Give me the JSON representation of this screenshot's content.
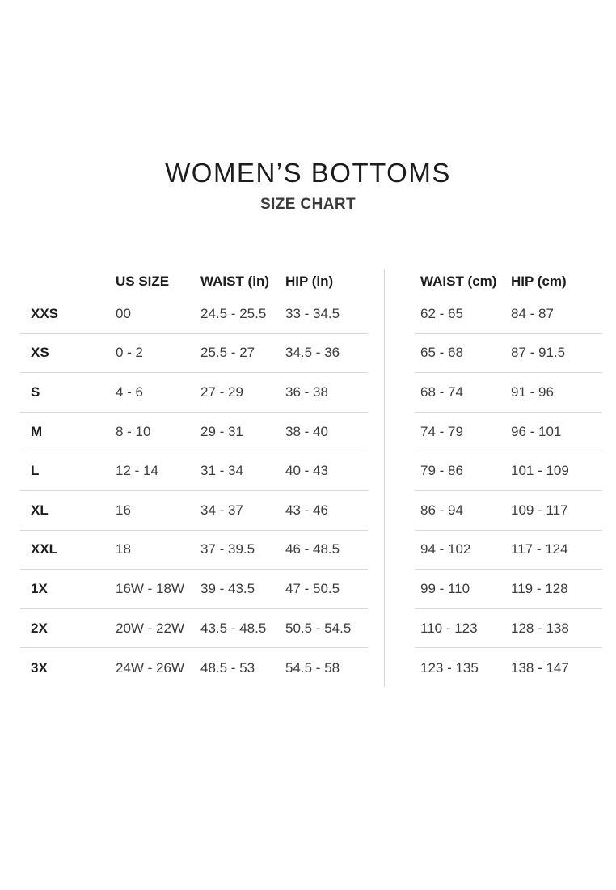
{
  "title": "WOMEN’S BOTTOMS",
  "subtitle": "SIZE CHART",
  "colors": {
    "background": "#ffffff",
    "heading_text": "#1c1c1c",
    "header_text": "#1d1d1d",
    "value_text": "#3c3c3c",
    "divider": "#d9d9d9"
  },
  "chart_data": {
    "type": "table",
    "title": "WOMEN’S BOTTOMS",
    "subtitle": "SIZE CHART",
    "tables": [
      {
        "name": "us-inches-table",
        "columns": [
          "",
          "US SIZE",
          "WAIST (in)",
          "HIP (in)"
        ],
        "rows": [
          [
            "XXS",
            "00",
            "24.5 - 25.5",
            "33 - 34.5"
          ],
          [
            "XS",
            "0 - 2",
            "25.5 - 27",
            "34.5 - 36"
          ],
          [
            "S",
            "4 - 6",
            "27 - 29",
            "36 - 38"
          ],
          [
            "M",
            "8 - 10",
            "29 - 31",
            "38 - 40"
          ],
          [
            "L",
            "12 - 14",
            "31 - 34",
            "40 - 43"
          ],
          [
            "XL",
            "16",
            "34 - 37",
            "43 - 46"
          ],
          [
            "XXL",
            "18",
            "37 - 39.5",
            "46 - 48.5"
          ],
          [
            "1X",
            "16W - 18W",
            "39 - 43.5",
            "47 - 50.5"
          ],
          [
            "2X",
            "20W - 22W",
            "43.5 - 48.5",
            "50.5 - 54.5"
          ],
          [
            "3X",
            "24W - 26W",
            "48.5 - 53",
            "54.5 - 58"
          ]
        ]
      },
      {
        "name": "metric-cm-table",
        "columns": [
          "WAIST (cm)",
          "HIP (cm)"
        ],
        "rows": [
          [
            "62 - 65",
            "84 - 87"
          ],
          [
            "65 - 68",
            "87 - 91.5"
          ],
          [
            "68 - 74",
            "91 - 96"
          ],
          [
            "74 - 79",
            "96 - 101"
          ],
          [
            "79 - 86",
            "101 - 109"
          ],
          [
            "86 - 94",
            "109 - 117"
          ],
          [
            "94 - 102",
            "117 - 124"
          ],
          [
            "99 - 110",
            "119 - 128"
          ],
          [
            "110 - 123",
            "128 - 138"
          ],
          [
            "123 - 135",
            "138 - 147"
          ]
        ]
      }
    ]
  }
}
